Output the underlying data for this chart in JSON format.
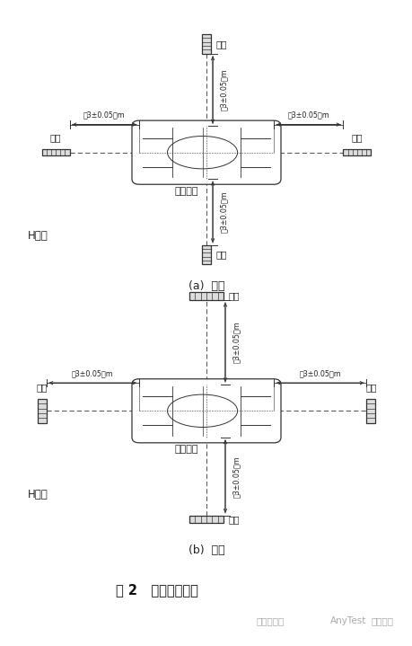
{
  "bg_color": "#ffffff",
  "fig_width": 4.6,
  "fig_height": 7.19,
  "title": "图 2   磁场天线位置",
  "watermark1": "嘉峪检测网",
  "watermark2": "AnyTest",
  "watermark3": "电动学堂",
  "sub_a_label": "(a)  横向",
  "sub_b_label": "(b)  径向",
  "H_label_a": "H横向",
  "H_label_b": "H径向",
  "car_label": "被测车辆",
  "antenna_label": "天线",
  "dist_label": "（3±0.05）m",
  "text_color": "#222222",
  "line_color": "#333333",
  "dash_color": "#555555",
  "ant_fill": "#dddddd",
  "ant_edge": "#333333"
}
